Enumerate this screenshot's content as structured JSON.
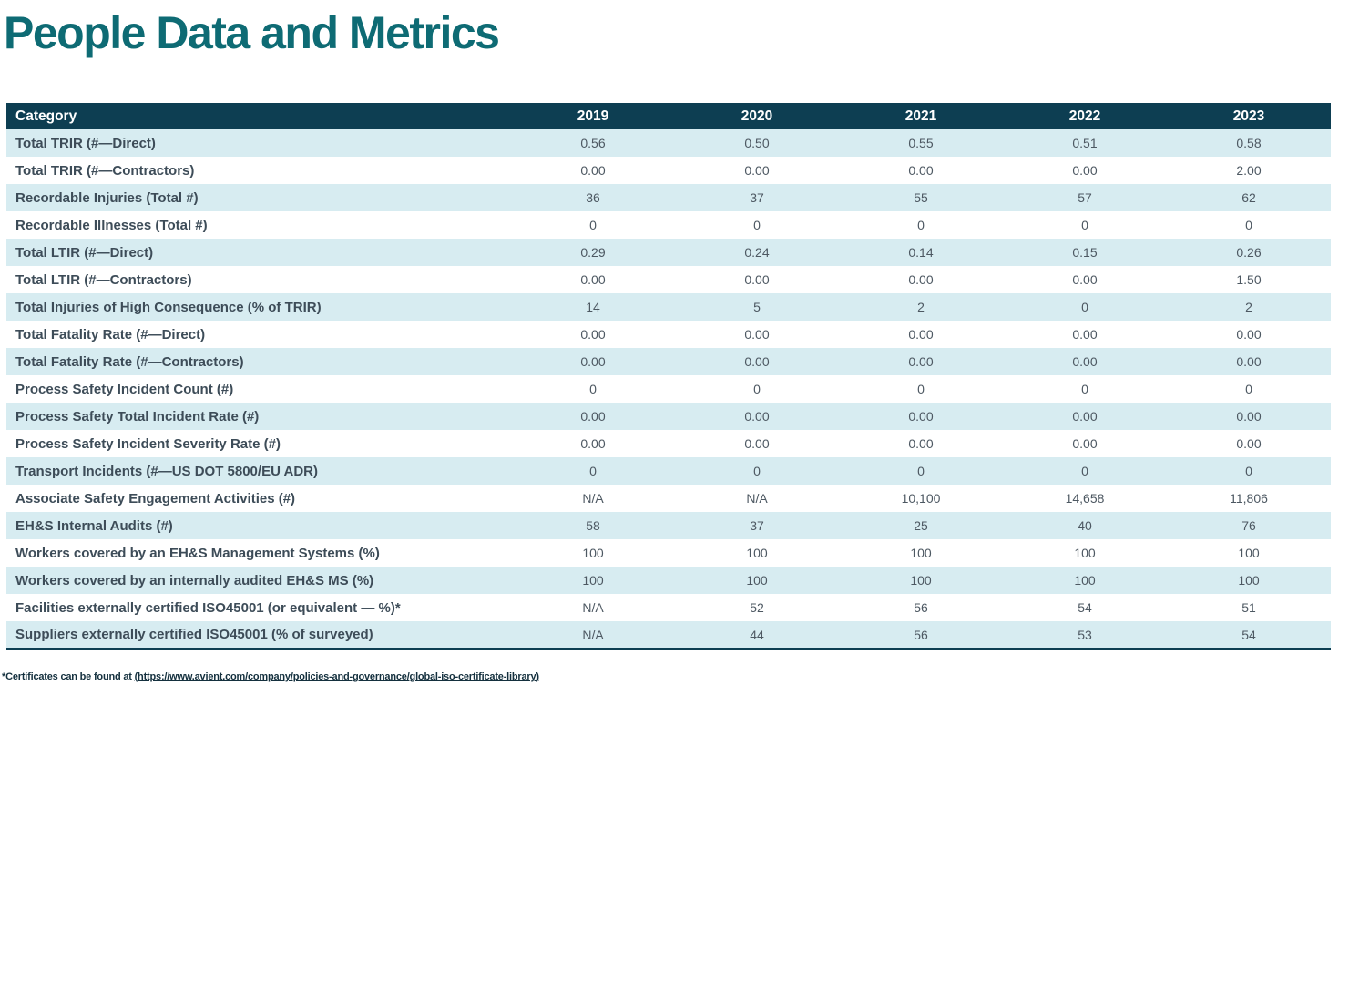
{
  "page_title": "People Data and Metrics",
  "table": {
    "columns": [
      "Category",
      "2019",
      "2020",
      "2021",
      "2022",
      "2023"
    ],
    "rows": [
      {
        "category": "Total TRIR (#—Direct)",
        "values": [
          "0.56",
          "0.50",
          "0.55",
          "0.51",
          "0.58"
        ]
      },
      {
        "category": "Total TRIR (#—Contractors)",
        "values": [
          "0.00",
          "0.00",
          "0.00",
          "0.00",
          "2.00"
        ]
      },
      {
        "category": "Recordable Injuries (Total #)",
        "values": [
          "36",
          "37",
          "55",
          "57",
          "62"
        ]
      },
      {
        "category": "Recordable Illnesses (Total #)",
        "values": [
          "0",
          "0",
          "0",
          "0",
          "0"
        ]
      },
      {
        "category": "Total LTIR (#—Direct)",
        "values": [
          "0.29",
          "0.24",
          "0.14",
          "0.15",
          "0.26"
        ]
      },
      {
        "category": "Total LTIR (#—Contractors)",
        "values": [
          "0.00",
          "0.00",
          "0.00",
          "0.00",
          "1.50"
        ]
      },
      {
        "category": "Total Injuries of High Consequence (% of TRIR)",
        "values": [
          "14",
          "5",
          "2",
          "0",
          "2"
        ]
      },
      {
        "category": "Total Fatality Rate (#—Direct)",
        "values": [
          "0.00",
          "0.00",
          "0.00",
          "0.00",
          "0.00"
        ]
      },
      {
        "category": "Total Fatality Rate (#—Contractors)",
        "values": [
          "0.00",
          "0.00",
          "0.00",
          "0.00",
          "0.00"
        ]
      },
      {
        "category": "Process Safety Incident Count (#)",
        "values": [
          "0",
          "0",
          "0",
          "0",
          "0"
        ]
      },
      {
        "category": "Process Safety Total Incident Rate (#)",
        "values": [
          "0.00",
          "0.00",
          "0.00",
          "0.00",
          "0.00"
        ]
      },
      {
        "category": "Process Safety Incident Severity Rate (#)",
        "values": [
          "0.00",
          "0.00",
          "0.00",
          "0.00",
          "0.00"
        ]
      },
      {
        "category": "Transport Incidents (#—US DOT 5800/EU ADR)",
        "values": [
          "0",
          "0",
          "0",
          "0",
          "0"
        ]
      },
      {
        "category": "Associate Safety Engagement Activities (#)",
        "values": [
          "N/A",
          "N/A",
          "10,100",
          "14,658",
          "11,806"
        ]
      },
      {
        "category": "EH&S Internal Audits (#)",
        "values": [
          "58",
          "37",
          "25",
          "40",
          "76"
        ]
      },
      {
        "category": "Workers covered by an EH&S Management Systems (%)",
        "values": [
          "100",
          "100",
          "100",
          "100",
          "100"
        ]
      },
      {
        "category": "Workers covered by an internally audited EH&S MS (%)",
        "values": [
          "100",
          "100",
          "100",
          "100",
          "100"
        ]
      },
      {
        "category": "Facilities externally certified ISO45001 (or equivalent — %)*",
        "values": [
          "N/A",
          "52",
          "56",
          "54",
          "51"
        ]
      },
      {
        "category": "Suppliers externally certified ISO45001 (% of surveyed)",
        "values": [
          "N/A",
          "44",
          "56",
          "53",
          "54"
        ]
      }
    ]
  },
  "footnote": {
    "prefix": "*Certificates can be found at ",
    "link_text": "(https://www.avient.com/company/policies-and-governance/global-iso-certificate-library)"
  },
  "colors": {
    "title": "#0e6b74",
    "header_bg": "#0d3e52",
    "row_alt_bg": "#d7ecf1",
    "category_text": "#3d4c58",
    "value_text": "#4d5862",
    "footnote_text": "#14303e"
  }
}
